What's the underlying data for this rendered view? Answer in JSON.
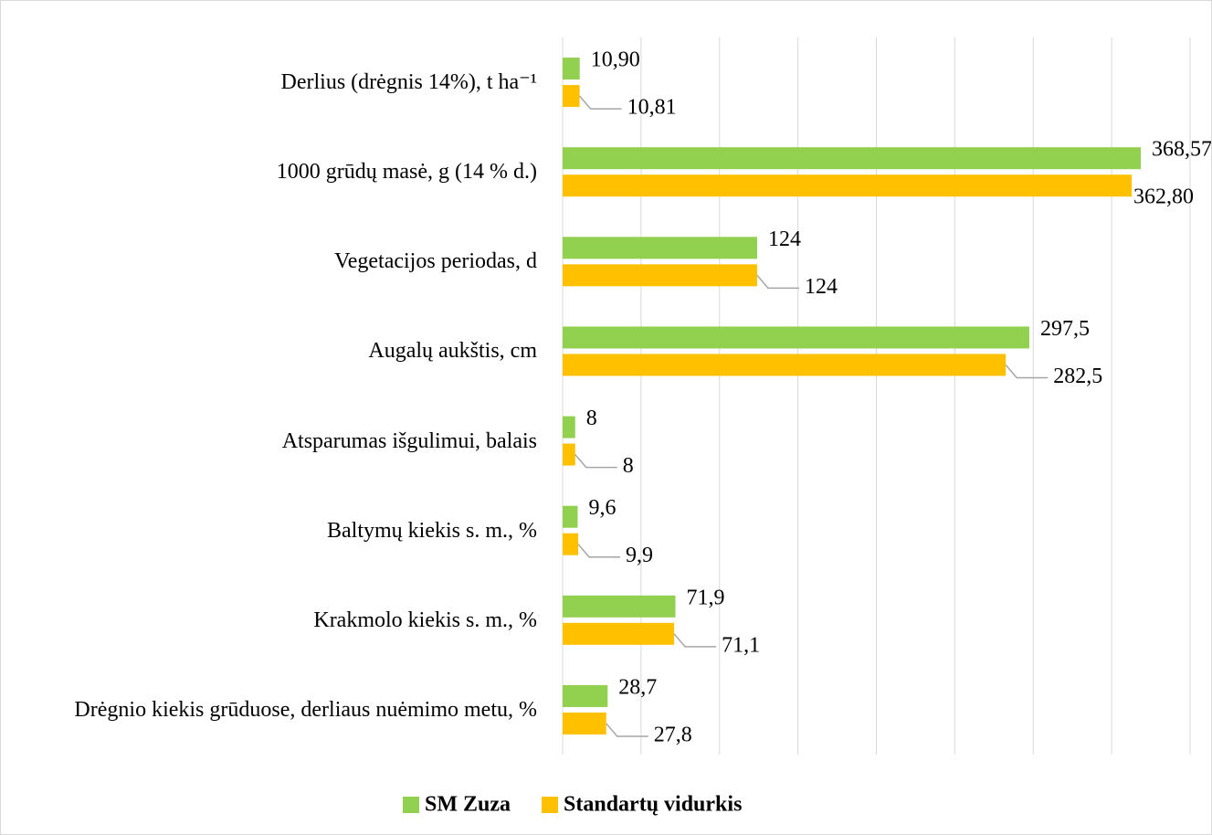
{
  "chart_data": {
    "type": "hbar",
    "categories": [
      "Derlius (drėgnis 14%), t ha⁻¹",
      "1000 grūdų masė, g (14 % d.)",
      "Vegetacijos periodas, d",
      "Augalų aukštis, cm",
      "Atsparumas išgulimui, balais",
      "Baltymų kiekis s. m., %",
      "Krakmolo kiekis s. m., %",
      "Drėgnio kiekis grūduose, derliaus nuėmimo metu, %"
    ],
    "series": [
      {
        "name": "SM Zuza",
        "color": "#92d050",
        "values": [
          10.9,
          368.57,
          124,
          297.5,
          8,
          9.6,
          71.9,
          28.7
        ],
        "value_labels": [
          "10,90",
          "368,57",
          "124",
          "297,5",
          "8",
          "9,6",
          "71,9",
          "28,7"
        ]
      },
      {
        "name": "Standartų vidurkis",
        "color": "#ffc000",
        "values": [
          10.81,
          362.8,
          124,
          282.5,
          8,
          9.9,
          71.1,
          27.8
        ],
        "value_labels": [
          "10,81",
          "362,80",
          "124",
          "282,5",
          "8",
          "9,9",
          "71,1",
          "27,8"
        ]
      }
    ],
    "xlim": [
      0,
      400
    ],
    "xticks": [
      0,
      50,
      100,
      150,
      200,
      250,
      300,
      350,
      400
    ],
    "grid": true,
    "show_tick_labels": false,
    "legend": "bottom"
  }
}
